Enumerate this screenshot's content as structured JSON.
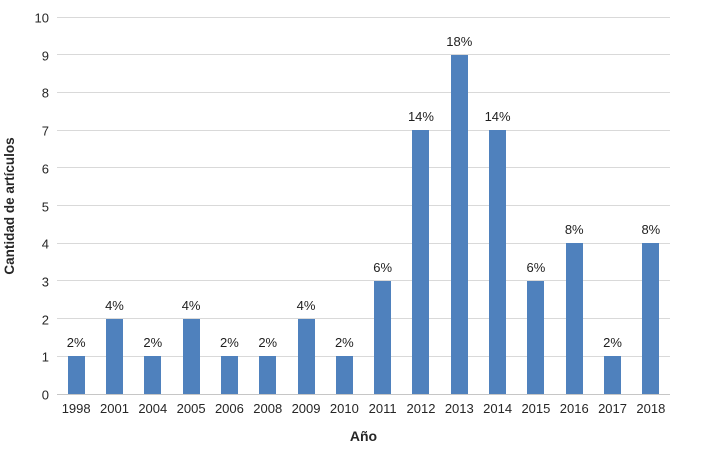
{
  "chart_data": {
    "type": "bar",
    "title": "",
    "xlabel": "Año",
    "ylabel": "Cantidad de artículos",
    "categories": [
      "1998",
      "2001",
      "2004",
      "2005",
      "2006",
      "2008",
      "2009",
      "2010",
      "2011",
      "2012",
      "2013",
      "2014",
      "2015",
      "2016",
      "2017",
      "2018"
    ],
    "values": [
      1,
      2,
      1,
      2,
      1,
      1,
      2,
      1,
      3,
      7,
      9,
      7,
      3,
      4,
      1,
      4
    ],
    "bar_labels": [
      "2%",
      "4%",
      "2%",
      "4%",
      "2%",
      "2%",
      "4%",
      "2%",
      "6%",
      "14%",
      "18%",
      "14%",
      "6%",
      "8%",
      "2%",
      "8%"
    ],
    "ylim": [
      0,
      10
    ],
    "ytick_step": 1,
    "grid": true,
    "legend": "none",
    "bar_color": "#4f81bd",
    "gridline_color": "#d9d9d9",
    "axis_line_color": "#c6c6c6",
    "text_color": "#262626"
  }
}
